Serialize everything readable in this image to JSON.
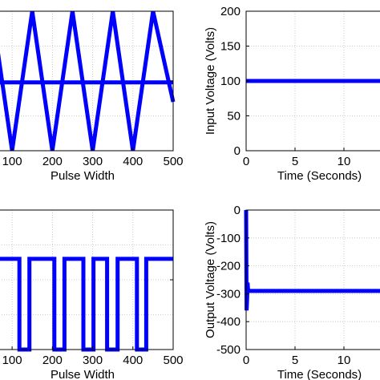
{
  "chart_data": [
    {
      "type": "line",
      "position": "top-left",
      "xlabel": "Pulse Width",
      "ylabel": "",
      "xlim": [
        50,
        500
      ],
      "ylim": [
        0,
        1
      ],
      "xticks": [
        100,
        200,
        300,
        400,
        500
      ],
      "series": [
        {
          "name": "",
          "color": "#0000ff",
          "x": [
            0,
            50,
            100,
            150,
            200,
            250,
            300,
            350,
            400,
            450,
            500
          ],
          "y": [
            0,
            1,
            0,
            1,
            0,
            1,
            0,
            1,
            0,
            1,
            0.35
          ]
        },
        {
          "name": "",
          "color": "#0000ff",
          "x": [
            0,
            500
          ],
          "y": [
            0.49,
            0.49
          ]
        }
      ]
    },
    {
      "type": "line",
      "position": "top-right",
      "xlabel": "Time (Seconds)",
      "ylabel": "Input Voltage (Volts)",
      "xlim": [
        0,
        15
      ],
      "ylim": [
        0,
        200
      ],
      "xticks": [
        0,
        5,
        10
      ],
      "yticks": [
        0,
        50,
        100,
        150,
        200
      ],
      "series": [
        {
          "name": "",
          "color": "#0000ff",
          "x": [
            0,
            15
          ],
          "y": [
            100,
            100
          ]
        }
      ]
    },
    {
      "type": "line",
      "position": "bottom-left",
      "xlabel": "Pulse Width",
      "ylabel": "",
      "xlim": [
        50,
        500
      ],
      "ylim": [
        0,
        1
      ],
      "xticks": [
        100,
        200,
        300,
        400,
        500
      ],
      "series": [
        {
          "name": "",
          "color": "#0000ff",
          "x": [
            50,
            118,
            118,
            143,
            143,
            205,
            205,
            230,
            230,
            277,
            277,
            302,
            302,
            336,
            336,
            362,
            362,
            410,
            410,
            433,
            433,
            500
          ],
          "y": [
            0.65,
            0.65,
            0,
            0,
            0.65,
            0.65,
            0,
            0,
            0.65,
            0.65,
            0,
            0,
            0.65,
            0.65,
            0,
            0,
            0.65,
            0.65,
            0,
            0,
            0.65,
            0.65
          ]
        }
      ]
    },
    {
      "type": "line",
      "position": "bottom-right",
      "xlabel": "Time (Seconds)",
      "ylabel": "Output Voltage (Volts)",
      "xlim": [
        0,
        15
      ],
      "ylim": [
        -500,
        0
      ],
      "xticks": [
        0,
        5,
        10
      ],
      "yticks": [
        -500,
        -400,
        -300,
        -200,
        -100,
        0
      ],
      "series": [
        {
          "name": "",
          "color": "#0000ff",
          "x": [
            0,
            0.05,
            0.1,
            0.15,
            0.2,
            0.3,
            15
          ],
          "y": [
            0,
            -360,
            -320,
            -260,
            -285,
            -290,
            -290
          ]
        }
      ]
    }
  ],
  "text": {
    "tl_ticks": [
      "100",
      "200",
      "300",
      "400",
      "500"
    ],
    "tl_xlabel": "Pulse Width",
    "tr_yticks": [
      "200",
      "150",
      "100",
      "50",
      "0"
    ],
    "tr_xticks": [
      "0",
      "5",
      "10"
    ],
    "tr_xlabel": "Time (Seconds)",
    "tr_ylabel": "Input Voltage (Volts)",
    "bl_ticks": [
      "100",
      "200",
      "300",
      "400",
      "500"
    ],
    "bl_xlabel": "Pulse Width",
    "br_yticks": [
      "0",
      "-100",
      "-200",
      "-300",
      "-400",
      "-500"
    ],
    "br_xticks": [
      "0",
      "5",
      "10"
    ],
    "br_xlabel": "Time (Seconds)",
    "br_ylabel": "Output Voltage (Volts)"
  }
}
